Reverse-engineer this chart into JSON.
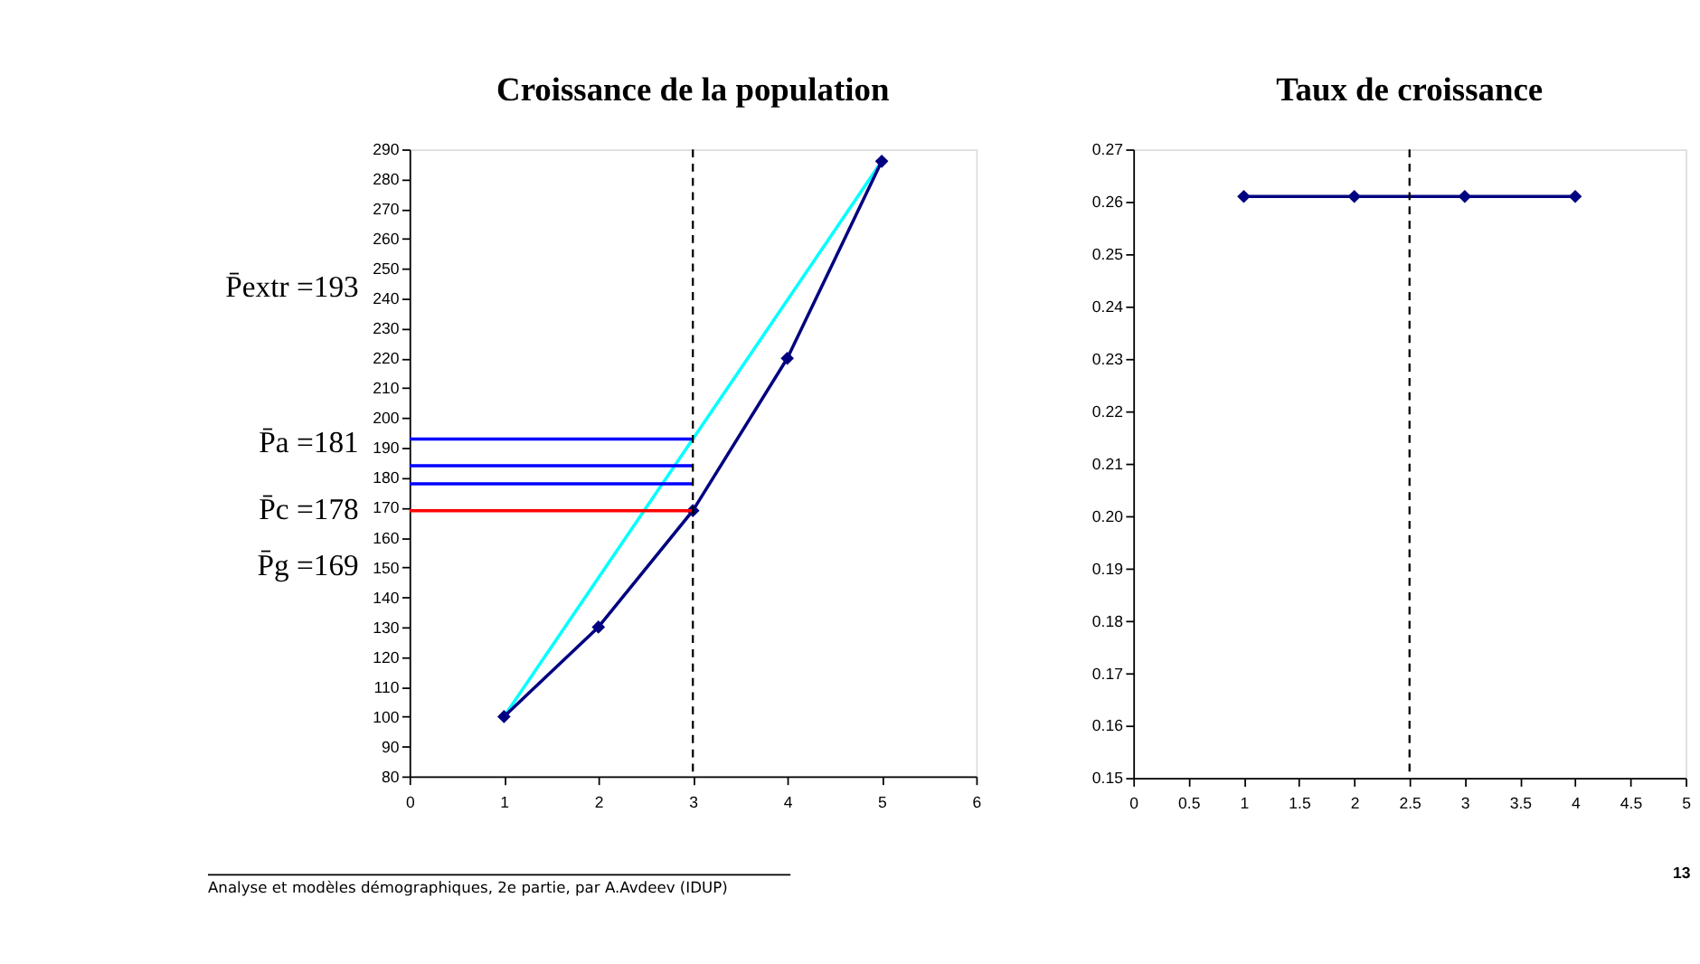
{
  "chart_data": [
    {
      "type": "line",
      "title": "Croissance de la population",
      "marker": "diamond",
      "grid": false,
      "xlim": [
        0,
        6
      ],
      "xticks": [
        0,
        1,
        2,
        3,
        4,
        5,
        6
      ],
      "ylim": [
        80,
        290
      ],
      "yticks": [
        80,
        90,
        100,
        110,
        120,
        130,
        140,
        150,
        160,
        170,
        180,
        190,
        200,
        210,
        220,
        230,
        240,
        250,
        260,
        270,
        280,
        290
      ],
      "series": [
        {
          "color": "#00ffff",
          "marker": "none",
          "x": [
            1,
            5
          ],
          "values": [
            100,
            286
          ]
        },
        {
          "color": "#000080",
          "x": [
            1,
            2,
            3,
            4,
            5
          ],
          "values": [
            100,
            130,
            169,
            220,
            286
          ]
        },
        {
          "color": "#0000ff",
          "marker": "none",
          "x": [
            0,
            3
          ],
          "values": [
            193,
            193
          ]
        },
        {
          "color": "#0000ff",
          "marker": "none",
          "x": [
            0,
            3
          ],
          "values": [
            184,
            184
          ]
        },
        {
          "color": "#0000ff",
          "marker": "none",
          "x": [
            0,
            3
          ],
          "values": [
            178,
            178
          ]
        },
        {
          "color": "#ff0000",
          "marker": "none",
          "x": [
            0,
            3
          ],
          "values": [
            169,
            169
          ]
        }
      ],
      "ref_lines": [
        {
          "axis": "x",
          "value": 3,
          "color": "#000000",
          "line_style": "dashed"
        }
      ],
      "annotations": [
        "P̄extr =193",
        "P̄a =181",
        "P̄c =178",
        "P̄g =169",
        "Analyse et modèles démographiques, 2e partie, par A.Avdeev (IDUP)"
      ]
    },
    {
      "type": "line",
      "title": "Taux de croissance",
      "marker": "diamond",
      "grid": false,
      "xlim": [
        0,
        5
      ],
      "xticks": [
        0,
        0.5,
        1,
        1.5,
        2,
        2.5,
        3,
        3.5,
        4,
        4.5,
        5
      ],
      "ylim": [
        0.15,
        0.27
      ],
      "yticks": [
        0.15,
        0.16,
        0.17,
        0.18,
        0.19,
        {
          "value": 0.2,
          "label": "0.20"
        },
        0.21,
        0.22,
        0.23,
        0.24,
        0.25,
        0.26,
        0.27
      ],
      "series": [
        {
          "color": "#000080",
          "x": [
            1,
            2,
            3,
            4
          ],
          "values": [
            0.261,
            0.261,
            0.261,
            0.261
          ]
        }
      ],
      "ref_lines": [
        {
          "axis": "x",
          "value": 2.5,
          "color": "#000000",
          "line_style": "dashed"
        }
      ],
      "annotations": [
        "13"
      ]
    }
  ]
}
